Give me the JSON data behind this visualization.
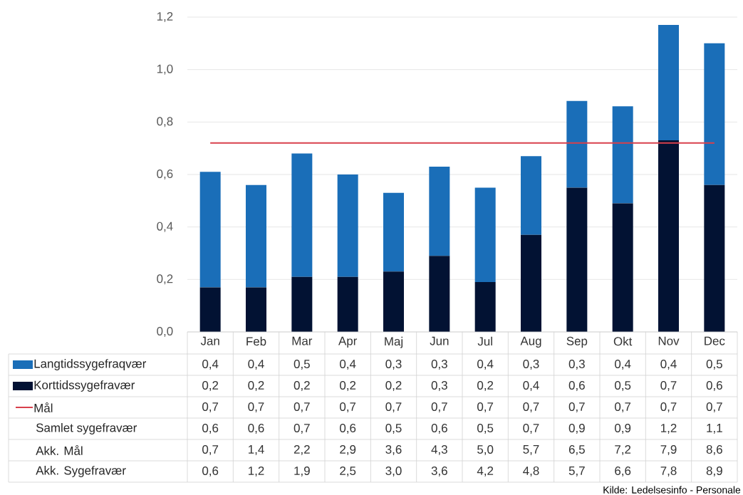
{
  "chart_data": {
    "type": "bar",
    "stacked": true,
    "grid": "y",
    "categories": [
      "Jan",
      "Feb",
      "Mar",
      "Apr",
      "Maj",
      "Jun",
      "Jul",
      "Aug",
      "Sep",
      "Okt",
      "Nov",
      "Dec"
    ],
    "series": [
      {
        "name": "Korttidssygefravær",
        "color": "#021233",
        "values": [
          0.17,
          0.17,
          0.21,
          0.21,
          0.23,
          0.29,
          0.19,
          0.37,
          0.55,
          0.49,
          0.73,
          0.56
        ],
        "value_labels": [
          "0,2",
          "0,2",
          "0,2",
          "0,2",
          "0,2",
          "0,3",
          "0,2",
          "0,4",
          "0,6",
          "0,5",
          "0,7",
          "0,6"
        ]
      },
      {
        "name": "Langtidssygefraqvær",
        "color": "#1a6eb8",
        "values": [
          0.44,
          0.39,
          0.47,
          0.39,
          0.3,
          0.34,
          0.36,
          0.3,
          0.33,
          0.37,
          0.44,
          0.54
        ],
        "value_labels": [
          "0,4",
          "0,4",
          "0,5",
          "0,4",
          "0,3",
          "0,3",
          "0,4",
          "0,3",
          "0,3",
          "0,4",
          "0,4",
          "0,5"
        ]
      },
      {
        "name": "Mål",
        "type": "line",
        "color": "#d8404c",
        "values": [
          0.72,
          0.72,
          0.72,
          0.72,
          0.72,
          0.72,
          0.72,
          0.72,
          0.72,
          0.72,
          0.72,
          0.72
        ],
        "value_labels": [
          "0,7",
          "0,7",
          "0,7",
          "0,7",
          "0,7",
          "0,7",
          "0,7",
          "0,7",
          "0,7",
          "0,7",
          "0,7",
          "0,7"
        ]
      },
      {
        "name": "Samlet sygefravær",
        "type": "other",
        "values": [
          null,
          null,
          null,
          null,
          null,
          null,
          null,
          null,
          null,
          null,
          null,
          null
        ],
        "value_labels": [
          "0,6",
          "0,6",
          "0,7",
          "0,6",
          "0,5",
          "0,6",
          "0,5",
          "0,7",
          "0,9",
          "0,9",
          "1,2",
          "1,1"
        ]
      },
      {
        "name": "Akk. Mål",
        "type": "other",
        "values": [
          null,
          null,
          null,
          null,
          null,
          null,
          null,
          null,
          null,
          null,
          null,
          null
        ],
        "value_labels": [
          "0,7",
          "1,4",
          "2,2",
          "2,9",
          "3,6",
          "4,3",
          "5,0",
          "5,7",
          "6,5",
          "7,2",
          "7,9",
          "8,6"
        ]
      },
      {
        "name": "Akk. Sygefravær",
        "type": "other",
        "values": [
          null,
          null,
          null,
          null,
          null,
          null,
          null,
          null,
          null,
          null,
          null,
          null
        ],
        "value_labels": [
          "0,6",
          "1,2",
          "1,9",
          "2,5",
          "3,0",
          "3,6",
          "4,2",
          "4,8",
          "5,7",
          "6,6",
          "7,8",
          "8,9"
        ]
      }
    ],
    "legend": "bottom left",
    "ylim": [
      0,
      1.2
    ],
    "yticks": [
      {
        "value": 0,
        "label": "0,0"
      },
      {
        "value": 0.2,
        "label": "0,2"
      },
      {
        "value": 0.4,
        "label": "0,4"
      },
      {
        "value": 0.6,
        "label": "0,6"
      },
      {
        "value": 0.8,
        "label": "0,8"
      },
      {
        "value": 1.0,
        "label": "1,0"
      },
      {
        "value": 1.2,
        "label": "1,2"
      }
    ],
    "annotations": [
      "Kilde: Ledelsesinfo - Personale"
    ]
  }
}
